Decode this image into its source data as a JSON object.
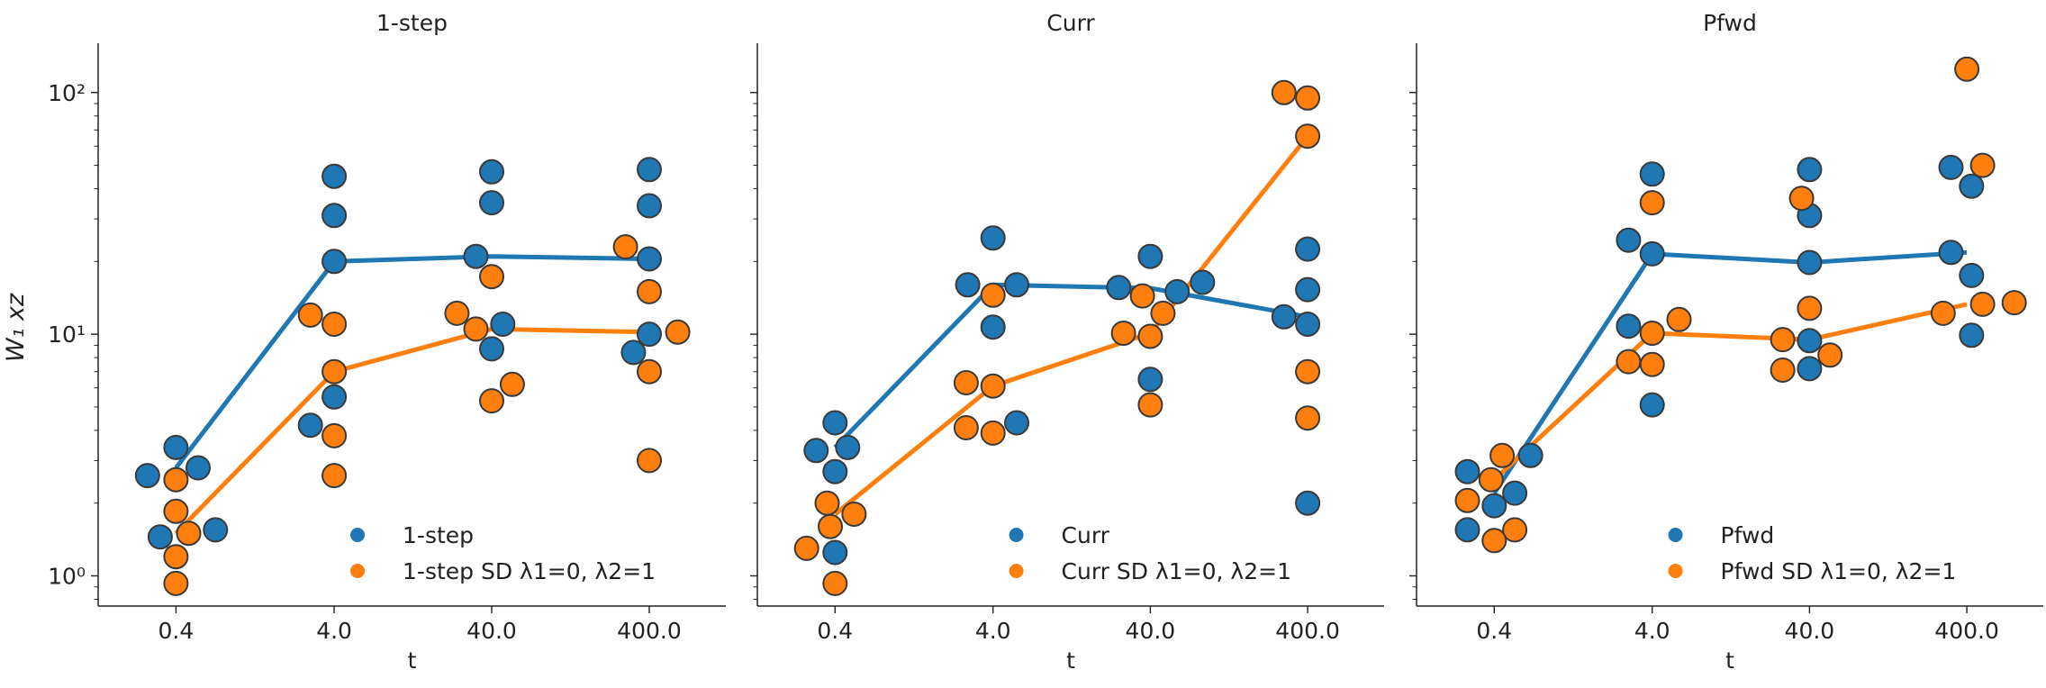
{
  "colors": {
    "blue": "#1f77b4",
    "orange": "#ff7f0e",
    "edge": "#3a3a3a",
    "axis": "#222222"
  },
  "chart_data": {
    "type": "scatter",
    "ylabel": "W₁ xz",
    "yscale": "log",
    "ylim": [
      0.75,
      160
    ],
    "y_ticks": [
      1,
      10,
      100
    ],
    "y_tick_labels": [
      "10⁰",
      "10¹",
      "10²"
    ],
    "x_categories": [
      "0.4",
      "4.0",
      "40.0",
      "400.0"
    ],
    "panels": [
      {
        "title": "1-step",
        "xlabel": "t",
        "legend": [
          "1-step",
          "1-step SD λ1=0, λ2=1"
        ],
        "series": [
          {
            "name": "1-step",
            "color": "blue",
            "points": [
              [
                -0.18,
                2.6
              ],
              [
                -0.1,
                1.45
              ],
              [
                0,
                3.4
              ],
              [
                0.14,
                2.8
              ],
              [
                0.25,
                1.55
              ],
              [
                -0.15,
                4.2
              ],
              [
                0,
                45
              ],
              [
                0,
                31
              ],
              [
                0,
                20
              ],
              [
                0,
                5.5
              ],
              [
                -0.1,
                21
              ],
              [
                0,
                47
              ],
              [
                0,
                35
              ],
              [
                0.07,
                11
              ],
              [
                0,
                8.7
              ],
              [
                -0.1,
                8.4
              ],
              [
                0,
                48
              ],
              [
                0,
                34
              ],
              [
                0,
                20.5
              ],
              [
                0,
                10
              ]
            ],
            "line": [
              2.8,
              20,
              21,
              20.5
            ]
          },
          {
            "name": "1-step SD λ1=0, λ2=1",
            "color": "orange",
            "points": [
              [
                0,
                2.5
              ],
              [
                0,
                1.85
              ],
              [
                0,
                1.2
              ],
              [
                0,
                0.93
              ],
              [
                0.08,
                1.5
              ],
              [
                -0.15,
                12
              ],
              [
                0,
                11
              ],
              [
                0,
                7
              ],
              [
                0,
                3.8
              ],
              [
                0,
                2.6
              ],
              [
                -0.22,
                12.2
              ],
              [
                -0.1,
                10.5
              ],
              [
                0,
                17.3
              ],
              [
                0,
                5.3
              ],
              [
                0.13,
                6.2
              ],
              [
                -0.15,
                23
              ],
              [
                0,
                15
              ],
              [
                0,
                7
              ],
              [
                0,
                3
              ],
              [
                0.18,
                10.2
              ]
            ],
            "line": [
              1.5,
              7,
              10.5,
              10.2
            ]
          }
        ]
      },
      {
        "title": "Curr",
        "xlabel": "t",
        "legend": [
          "Curr",
          "Curr SD λ1=0, λ2=1"
        ],
        "series": [
          {
            "name": "Curr",
            "color": "blue",
            "points": [
              [
                -0.12,
                3.3
              ],
              [
                0,
                4.3
              ],
              [
                0,
                2.7
              ],
              [
                0,
                1.25
              ],
              [
                0.08,
                3.4
              ],
              [
                -0.16,
                16
              ],
              [
                0,
                25
              ],
              [
                0,
                10.7
              ],
              [
                0.15,
                16
              ],
              [
                0.15,
                4.3
              ],
              [
                -0.2,
                15.6
              ],
              [
                0,
                21
              ],
              [
                0,
                6.5
              ],
              [
                0.17,
                15
              ],
              [
                0.33,
                16.4
              ],
              [
                -0.15,
                11.8
              ],
              [
                0,
                22.5
              ],
              [
                0,
                15.3
              ],
              [
                0,
                11
              ],
              [
                0,
                2
              ]
            ],
            "line": [
              3.4,
              16,
              15.5,
              11.8
            ]
          },
          {
            "name": "Curr SD λ1=0, λ2=1",
            "color": "orange",
            "points": [
              [
                -0.18,
                1.3
              ],
              [
                -0.05,
                2
              ],
              [
                -0.03,
                1.6
              ],
              [
                0,
                0.93
              ],
              [
                0.12,
                1.8
              ],
              [
                -0.17,
                6.3
              ],
              [
                -0.17,
                4.1
              ],
              [
                0,
                14.5
              ],
              [
                0,
                6.1
              ],
              [
                0,
                3.9
              ],
              [
                -0.17,
                10.1
              ],
              [
                -0.05,
                14.4
              ],
              [
                0,
                9.8
              ],
              [
                0,
                5.1
              ],
              [
                0.08,
                12.2
              ],
              [
                -0.15,
                100
              ],
              [
                0,
                95
              ],
              [
                0,
                66
              ],
              [
                0,
                7
              ],
              [
                0,
                4.5
              ]
            ],
            "line": [
              1.8,
              6.1,
              10.1,
              66
            ]
          }
        ]
      },
      {
        "title": "Pfwd",
        "xlabel": "t",
        "legend": [
          "Pfwd",
          "Pfwd SD λ1=0, λ2=1"
        ],
        "series": [
          {
            "name": "Pfwd",
            "color": "blue",
            "points": [
              [
                -0.17,
                2.7
              ],
              [
                -0.17,
                1.55
              ],
              [
                0,
                1.95
              ],
              [
                0.13,
                2.2
              ],
              [
                0.23,
                3.15
              ],
              [
                -0.15,
                24.5
              ],
              [
                -0.15,
                10.8
              ],
              [
                0,
                46
              ],
              [
                0,
                21.5
              ],
              [
                0,
                5.1
              ],
              [
                0,
                48
              ],
              [
                0,
                31
              ],
              [
                0,
                19.8
              ],
              [
                0,
                9.4
              ],
              [
                0,
                7.2
              ],
              [
                -0.1,
                49
              ],
              [
                -0.1,
                21.8
              ],
              [
                0.03,
                41
              ],
              [
                0.03,
                17.5
              ],
              [
                0.03,
                9.9
              ]
            ],
            "line": [
              2.2,
              21.5,
              19.8,
              21.8
            ]
          },
          {
            "name": "Pfwd SD λ1=0, λ2=1",
            "color": "orange",
            "points": [
              [
                -0.17,
                2.05
              ],
              [
                -0.02,
                2.5
              ],
              [
                0.05,
                3.15
              ],
              [
                0,
                1.4
              ],
              [
                0.13,
                1.55
              ],
              [
                -0.15,
                7.7
              ],
              [
                0,
                35
              ],
              [
                0,
                10.1
              ],
              [
                0,
                7.5
              ],
              [
                0.17,
                11.5
              ],
              [
                -0.17,
                9.5
              ],
              [
                -0.17,
                7.1
              ],
              [
                -0.05,
                36.5
              ],
              [
                0,
                12.8
              ],
              [
                0.13,
                8.2
              ],
              [
                -0.15,
                12.2
              ],
              [
                0,
                125
              ],
              [
                0.1,
                50
              ],
              [
                0.1,
                13.3
              ],
              [
                0.3,
                13.5
              ]
            ],
            "line": [
              2.5,
              10.1,
              9.5,
              13.3
            ]
          }
        ]
      }
    ]
  }
}
